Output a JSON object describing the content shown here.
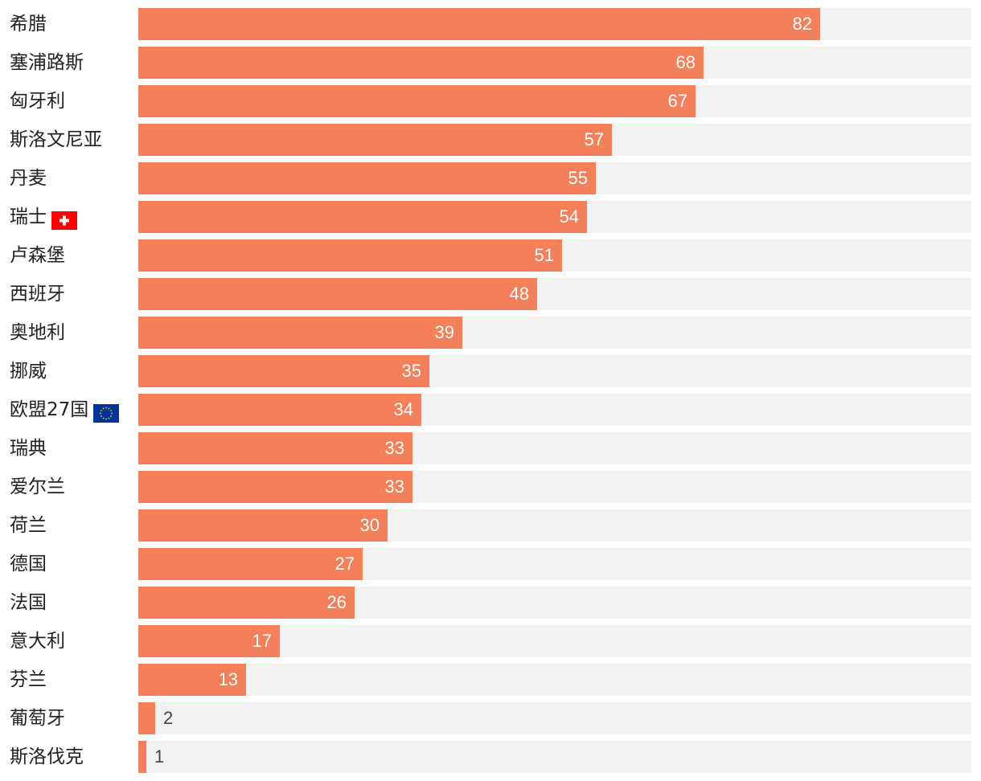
{
  "chart_data": {
    "type": "bar",
    "orientation": "horizontal",
    "categories": [
      "希腊",
      "塞浦路斯",
      "匈牙利",
      "斯洛文尼亚",
      "丹麦",
      "瑞士",
      "卢森堡",
      "西班牙",
      "奥地利",
      "挪威",
      "欧盟27国",
      "瑞典",
      "爱尔兰",
      "荷兰",
      "德国",
      "法国",
      "意大利",
      "芬兰",
      "葡萄牙",
      "斯洛伐克"
    ],
    "values": [
      82,
      68,
      67,
      57,
      55,
      54,
      51,
      48,
      39,
      35,
      34,
      33,
      33,
      30,
      27,
      26,
      17,
      13,
      2,
      1
    ],
    "flags": [
      "",
      "",
      "",
      "",
      "",
      "switzerland-flag",
      "",
      "",
      "",
      "",
      "eu-flag",
      "",
      "",
      "",
      "",
      "",
      "",
      "",
      "",
      ""
    ],
    "xlim": [
      0,
      100
    ],
    "grid": false,
    "legend": "none",
    "title": "",
    "xlabel": "",
    "ylabel": ""
  },
  "colors": {
    "bar": "#f47f5b",
    "track": "#f2f2f2",
    "label_text": "#222222",
    "value_inside": "#ffffff",
    "value_outside": "#444444",
    "swiss_red": "#ff0000",
    "eu_blue": "#003399",
    "eu_star": "#ffcc00"
  }
}
